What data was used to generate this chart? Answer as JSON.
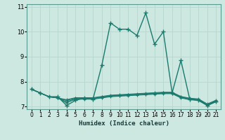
{
  "xlabel": "Humidex (Indice chaleur)",
  "bg_color": "#cce8e0",
  "line_color": "#1a7a6e",
  "grid_color": "#b8d8d0",
  "x_values": [
    0,
    1,
    2,
    3,
    4,
    5,
    6,
    7,
    8,
    9,
    10,
    11,
    12,
    13,
    14,
    15,
    16,
    17,
    18,
    19,
    20,
    21
  ],
  "series": [
    [
      7.7,
      7.55,
      7.4,
      7.4,
      7.05,
      7.25,
      7.35,
      7.3,
      8.65,
      10.35,
      10.1,
      10.1,
      9.85,
      10.75,
      9.5,
      10.0,
      7.55,
      8.85,
      7.3,
      7.25,
      7.05,
      7.2
    ],
    [
      7.7,
      7.55,
      7.4,
      7.35,
      7.15,
      7.3,
      7.3,
      7.3,
      7.35,
      7.4,
      7.42,
      7.44,
      7.46,
      7.48,
      7.5,
      7.52,
      7.52,
      7.35,
      7.28,
      7.25,
      7.05,
      7.2
    ],
    [
      7.7,
      7.55,
      7.4,
      7.35,
      7.2,
      7.32,
      7.32,
      7.32,
      7.37,
      7.42,
      7.44,
      7.46,
      7.48,
      7.5,
      7.52,
      7.54,
      7.54,
      7.37,
      7.3,
      7.27,
      7.07,
      7.22
    ],
    [
      7.7,
      7.55,
      7.4,
      7.35,
      7.25,
      7.34,
      7.34,
      7.34,
      7.39,
      7.44,
      7.46,
      7.48,
      7.5,
      7.52,
      7.54,
      7.56,
      7.56,
      7.39,
      7.32,
      7.29,
      7.09,
      7.24
    ],
    [
      7.7,
      7.55,
      7.4,
      7.35,
      7.28,
      7.36,
      7.36,
      7.36,
      7.41,
      7.46,
      7.48,
      7.5,
      7.52,
      7.54,
      7.56,
      7.58,
      7.58,
      7.41,
      7.34,
      7.31,
      7.11,
      7.26
    ]
  ],
  "ylim": [
    6.9,
    11.1
  ],
  "xlim": [
    -0.5,
    21.5
  ],
  "yticks": [
    7,
    8,
    9,
    10,
    11
  ],
  "xticks": [
    0,
    1,
    2,
    3,
    4,
    5,
    6,
    7,
    8,
    9,
    10,
    11,
    12,
    13,
    14,
    15,
    16,
    17,
    18,
    19,
    20,
    21
  ]
}
